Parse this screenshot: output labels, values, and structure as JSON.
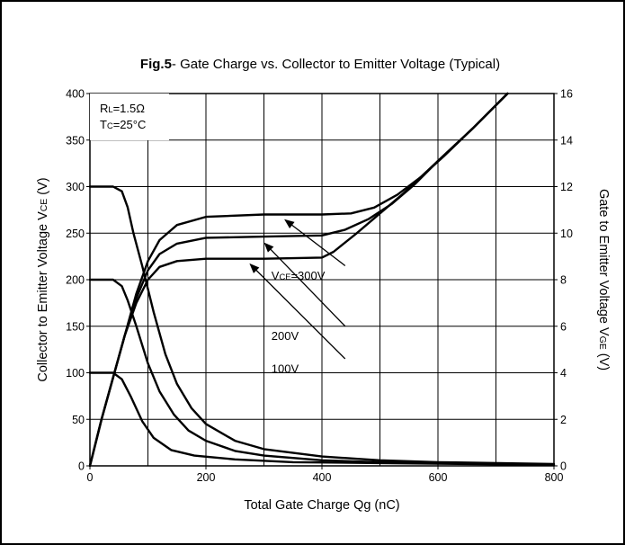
{
  "chart_data": {
    "type": "line",
    "title_bold": "Fig.5",
    "title": "- Gate Charge vs. Collector to Emitter Voltage (Typical)",
    "xlabel": "Total Gate Charge Qg (nC)",
    "ylabel_left": "Collector to Emitter Voltage VCE (V)",
    "ylabel_left_parts": [
      "Collector to Emitter Voltage V",
      "CE",
      " (V)"
    ],
    "ylabel_right": "Gate to Emitter Voltage VGE (V)",
    "ylabel_right_parts": [
      "Gate to Emitter Voltage V",
      "GE",
      " (V)"
    ],
    "xlim": [
      0,
      800
    ],
    "ylim_left": [
      0,
      400
    ],
    "ylim_right": [
      0,
      16
    ],
    "x_ticks": [
      0,
      200,
      400,
      600,
      800
    ],
    "y_left_ticks": [
      0,
      50,
      100,
      150,
      200,
      250,
      300,
      350,
      400
    ],
    "y_right_ticks": [
      0,
      2,
      4,
      6,
      8,
      10,
      12,
      14,
      16
    ],
    "grid": true,
    "conditions": [
      {
        "main": "R",
        "sub": "L",
        "rest": "=1.5Ω"
      },
      {
        "main": "T",
        "sub": "C",
        "rest": "=25°C"
      }
    ],
    "annotations": [
      {
        "main": "V",
        "sub": "CE",
        "rest": "=300V"
      },
      {
        "main": "200V",
        "sub": "",
        "rest": ""
      },
      {
        "main": "100V",
        "sub": "",
        "rest": ""
      }
    ],
    "series": [
      {
        "axis": "left",
        "points": [
          [
            0,
            300
          ],
          [
            40,
            300
          ],
          [
            55,
            295
          ],
          [
            65,
            278
          ],
          [
            75,
            250
          ],
          [
            90,
            215
          ],
          [
            110,
            165
          ],
          [
            130,
            120
          ],
          [
            150,
            88
          ],
          [
            175,
            62
          ],
          [
            200,
            45
          ],
          [
            250,
            27
          ],
          [
            300,
            18
          ],
          [
            400,
            10
          ],
          [
            500,
            6
          ],
          [
            600,
            4
          ],
          [
            800,
            2
          ]
        ]
      },
      {
        "axis": "left",
        "points": [
          [
            0,
            200
          ],
          [
            40,
            200
          ],
          [
            55,
            193
          ],
          [
            65,
            178
          ],
          [
            80,
            150
          ],
          [
            100,
            110
          ],
          [
            120,
            80
          ],
          [
            145,
            55
          ],
          [
            170,
            38
          ],
          [
            200,
            27
          ],
          [
            250,
            16
          ],
          [
            300,
            11
          ],
          [
            400,
            6
          ],
          [
            500,
            4
          ],
          [
            600,
            3
          ],
          [
            800,
            1
          ]
        ]
      },
      {
        "axis": "left",
        "points": [
          [
            0,
            100
          ],
          [
            40,
            100
          ],
          [
            55,
            93
          ],
          [
            70,
            75
          ],
          [
            90,
            48
          ],
          [
            110,
            30
          ],
          [
            140,
            17
          ],
          [
            180,
            11
          ],
          [
            250,
            7
          ],
          [
            350,
            4
          ],
          [
            500,
            3
          ],
          [
            800,
            1
          ]
        ]
      },
      {
        "axis": "right",
        "points": [
          [
            0,
            0
          ],
          [
            20,
            2
          ],
          [
            40,
            3.8
          ],
          [
            60,
            5.6
          ],
          [
            80,
            7.0
          ],
          [
            100,
            8.0
          ],
          [
            120,
            8.55
          ],
          [
            150,
            8.8
          ],
          [
            200,
            8.9
          ],
          [
            300,
            8.9
          ],
          [
            400,
            8.95
          ],
          [
            420,
            9.2
          ],
          [
            460,
            10.0
          ],
          [
            500,
            10.85
          ],
          [
            540,
            11.7
          ],
          [
            600,
            13.1
          ],
          [
            660,
            14.5
          ],
          [
            720,
            16.0
          ]
        ]
      },
      {
        "axis": "right",
        "points": [
          [
            0,
            0
          ],
          [
            20,
            2
          ],
          [
            40,
            3.8
          ],
          [
            60,
            5.6
          ],
          [
            80,
            7.2
          ],
          [
            100,
            8.4
          ],
          [
            120,
            9.1
          ],
          [
            150,
            9.55
          ],
          [
            200,
            9.8
          ],
          [
            300,
            9.85
          ],
          [
            400,
            9.9
          ],
          [
            440,
            10.15
          ],
          [
            480,
            10.6
          ],
          [
            520,
            11.25
          ],
          [
            560,
            12.1
          ],
          [
            600,
            13.1
          ],
          [
            660,
            14.5
          ],
          [
            720,
            16.0
          ]
        ]
      },
      {
        "axis": "right",
        "points": [
          [
            0,
            0
          ],
          [
            20,
            2
          ],
          [
            40,
            3.8
          ],
          [
            60,
            5.6
          ],
          [
            80,
            7.4
          ],
          [
            100,
            8.8
          ],
          [
            120,
            9.7
          ],
          [
            150,
            10.35
          ],
          [
            200,
            10.7
          ],
          [
            300,
            10.8
          ],
          [
            400,
            10.8
          ],
          [
            450,
            10.85
          ],
          [
            490,
            11.1
          ],
          [
            530,
            11.65
          ],
          [
            570,
            12.4
          ],
          [
            610,
            13.3
          ],
          [
            660,
            14.5
          ],
          [
            720,
            16.0
          ]
        ]
      }
    ]
  }
}
